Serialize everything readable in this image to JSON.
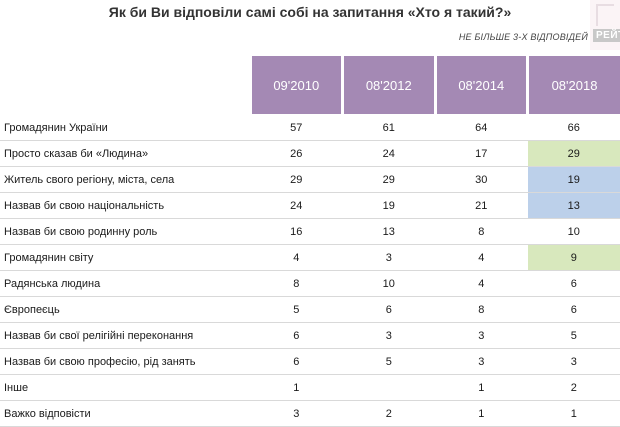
{
  "header": {
    "title": "Як би Ви відповіли самі собі на запитання «Хто я такий?»",
    "subtitle": "НЕ БІЛЬШЕ 3-Х ВІДПОВІДЕЙ",
    "brand": "РЕЙТ"
  },
  "colors": {
    "header_bg": "#a489b4",
    "highlight_green": "#d8e8bd",
    "highlight_blue": "#bcd0ea"
  },
  "chart_data": {
    "type": "table",
    "title": "Як би Ви відповіли самі собі на запитання «Хто я такий?»",
    "subtitle": "НЕ БІЛЬШЕ 3-Х ВІДПОВІДЕЙ",
    "columns": [
      "09'2010",
      "08'2012",
      "08'2014",
      "08'2018"
    ],
    "rows": [
      {
        "label": "Громадянин України",
        "values": [
          "57",
          "61",
          "64",
          "66"
        ],
        "highlight": ""
      },
      {
        "label": "Просто сказав би «Людина»",
        "values": [
          "26",
          "24",
          "17",
          "29"
        ],
        "highlight": "green"
      },
      {
        "label": "Житель свого регіону, міста, села",
        "values": [
          "29",
          "29",
          "30",
          "19"
        ],
        "highlight": "blue"
      },
      {
        "label": "Назвав би свою національність",
        "values": [
          "24",
          "19",
          "21",
          "13"
        ],
        "highlight": "blue"
      },
      {
        "label": "Назвав би свою родинну роль",
        "values": [
          "16",
          "13",
          "8",
          "10"
        ],
        "highlight": ""
      },
      {
        "label": "Громадянин світу",
        "values": [
          "4",
          "3",
          "4",
          "9"
        ],
        "highlight": "green"
      },
      {
        "label": "Радянська людина",
        "values": [
          "8",
          "10",
          "4",
          "6"
        ],
        "highlight": ""
      },
      {
        "label": "Європеєць",
        "values": [
          "5",
          "6",
          "8",
          "6"
        ],
        "highlight": ""
      },
      {
        "label": "Назвав би свої релігійні переконання",
        "values": [
          "6",
          "3",
          "3",
          "5"
        ],
        "highlight": ""
      },
      {
        "label": "Назвав би свою професію, рід занять",
        "values": [
          "6",
          "5",
          "3",
          "3"
        ],
        "highlight": ""
      },
      {
        "label": "Інше",
        "values": [
          "1",
          "",
          "1",
          "2"
        ],
        "highlight": ""
      },
      {
        "label": "Важко відповісти",
        "values": [
          "3",
          "2",
          "1",
          "1"
        ],
        "highlight": ""
      }
    ]
  }
}
